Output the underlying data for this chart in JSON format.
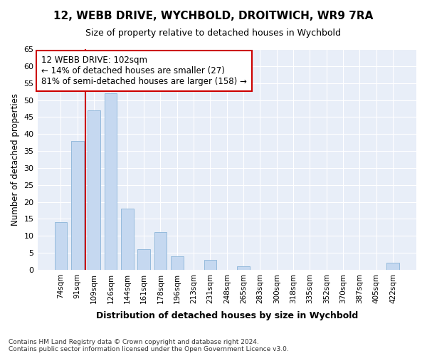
{
  "title1": "12, WEBB DRIVE, WYCHBOLD, DROITWICH, WR9 7RA",
  "title2": "Size of property relative to detached houses in Wychbold",
  "xlabel": "Distribution of detached houses by size in Wychbold",
  "ylabel": "Number of detached properties",
  "categories": [
    "74sqm",
    "91sqm",
    "109sqm",
    "126sqm",
    "144sqm",
    "161sqm",
    "178sqm",
    "196sqm",
    "213sqm",
    "231sqm",
    "248sqm",
    "265sqm",
    "283sqm",
    "300sqm",
    "318sqm",
    "335sqm",
    "352sqm",
    "370sqm",
    "387sqm",
    "405sqm",
    "422sqm"
  ],
  "values": [
    14,
    38,
    47,
    52,
    18,
    6,
    11,
    4,
    0,
    3,
    0,
    1,
    0,
    0,
    0,
    0,
    0,
    0,
    0,
    0,
    2
  ],
  "bar_color": "#c5d8f0",
  "bar_edge_color": "#8ab4d8",
  "red_line_x": 2.0,
  "annotation_text": "12 WEBB DRIVE: 102sqm\n← 14% of detached houses are smaller (27)\n81% of semi-detached houses are larger (158) →",
  "annotation_box_color": "#ffffff",
  "annotation_edge_color": "#cc0000",
  "ylim": [
    0,
    65
  ],
  "yticks": [
    0,
    5,
    10,
    15,
    20,
    25,
    30,
    35,
    40,
    45,
    50,
    55,
    60,
    65
  ],
  "fig_bg_color": "#ffffff",
  "bg_color": "#e8eef8",
  "grid_color": "#ffffff",
  "footer1": "Contains HM Land Registry data © Crown copyright and database right 2024.",
  "footer2": "Contains public sector information licensed under the Open Government Licence v3.0."
}
